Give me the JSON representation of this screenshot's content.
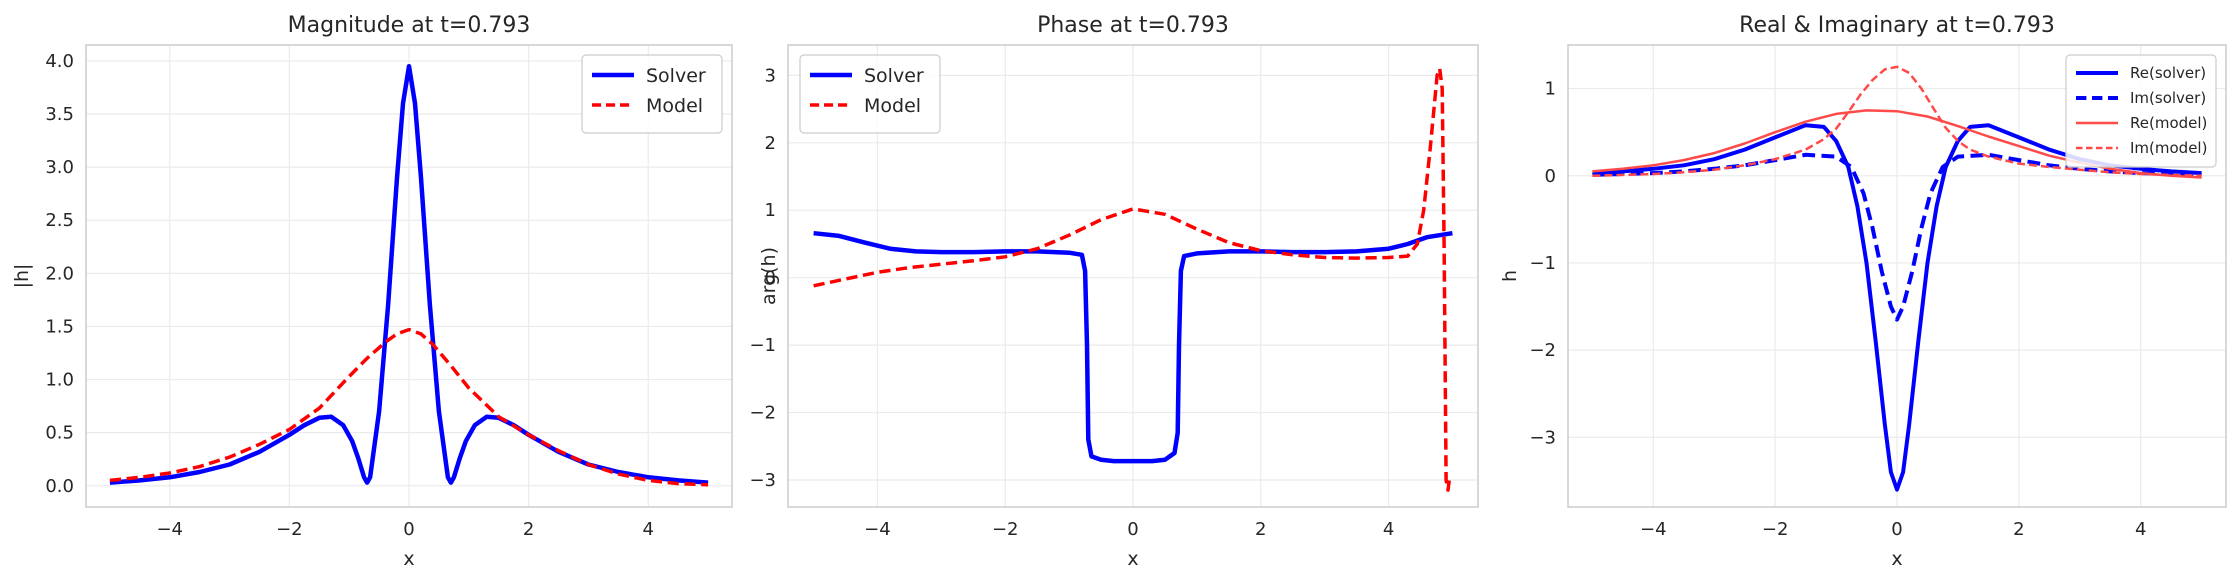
{
  "colors": {
    "solver": "#0000ff",
    "model": "#ff0000",
    "model_light": "#ff4a4a"
  },
  "chart_data": [
    {
      "type": "line",
      "title": "Magnitude at t=0.793",
      "xlabel": "x",
      "ylabel": "|h|",
      "xlim": [
        -5.4,
        5.4
      ],
      "ylim": [
        -0.2,
        4.15
      ],
      "xticks": [
        -4,
        -2,
        0,
        2,
        4
      ],
      "xtick_labels": [
        "−4",
        "−2",
        "0",
        "2",
        "4"
      ],
      "yticks": [
        0,
        0.5,
        1,
        1.5,
        2,
        2.5,
        3,
        3.5,
        4
      ],
      "ytick_labels": [
        "0.0",
        "0.5",
        "1.0",
        "1.5",
        "2.0",
        "2.5",
        "3.0",
        "3.5",
        "4.0"
      ],
      "grid": true,
      "legend_position": "top-right",
      "series": [
        {
          "name": "Solver",
          "style": "solid",
          "color": "#0000ff",
          "width": 4.5,
          "x": [
            -5,
            -4.5,
            -4,
            -3.5,
            -3,
            -2.5,
            -2,
            -1.75,
            -1.5,
            -1.3,
            -1.1,
            -0.95,
            -0.85,
            -0.75,
            -0.7,
            -0.65,
            -0.5,
            -0.35,
            -0.2,
            -0.1,
            0,
            0.1,
            0.2,
            0.35,
            0.5,
            0.65,
            0.7,
            0.75,
            0.85,
            0.95,
            1.1,
            1.3,
            1.5,
            1.75,
            2,
            2.5,
            3,
            3.5,
            4,
            4.5,
            5
          ],
          "y": [
            0.03,
            0.05,
            0.08,
            0.13,
            0.2,
            0.32,
            0.48,
            0.57,
            0.64,
            0.65,
            0.57,
            0.42,
            0.26,
            0.08,
            0.03,
            0.08,
            0.7,
            1.7,
            2.9,
            3.6,
            3.95,
            3.6,
            2.9,
            1.7,
            0.7,
            0.08,
            0.03,
            0.08,
            0.26,
            0.42,
            0.57,
            0.65,
            0.64,
            0.57,
            0.48,
            0.32,
            0.2,
            0.13,
            0.08,
            0.05,
            0.03
          ]
        },
        {
          "name": "Model",
          "style": "dashed",
          "color": "#ff0000",
          "width": 3.5,
          "x": [
            -5,
            -4.5,
            -4,
            -3.5,
            -3,
            -2.5,
            -2,
            -1.5,
            -1,
            -0.7,
            -0.4,
            -0.2,
            0,
            0.2,
            0.4,
            0.7,
            1,
            1.5,
            2,
            2.5,
            3,
            3.5,
            4,
            4.5,
            5
          ],
          "y": [
            0.05,
            0.08,
            0.12,
            0.18,
            0.27,
            0.39,
            0.53,
            0.73,
            1.03,
            1.2,
            1.35,
            1.43,
            1.47,
            1.43,
            1.33,
            1.13,
            0.92,
            0.65,
            0.48,
            0.33,
            0.2,
            0.11,
            0.05,
            0.02,
            0.01
          ]
        }
      ]
    },
    {
      "type": "line",
      "title": "Phase at t=0.793",
      "xlabel": "x",
      "ylabel": "arg(h)",
      "xlim": [
        -5.4,
        5.4
      ],
      "ylim": [
        -3.4,
        3.45
      ],
      "xticks": [
        -4,
        -2,
        0,
        2,
        4
      ],
      "xtick_labels": [
        "−4",
        "−2",
        "0",
        "2",
        "4"
      ],
      "yticks": [
        -3,
        -2,
        -1,
        0,
        1,
        2,
        3
      ],
      "ytick_labels": [
        "−3",
        "−2",
        "−1",
        "0",
        "1",
        "2",
        "3"
      ],
      "grid": true,
      "legend_position": "top-left",
      "series": [
        {
          "name": "Solver",
          "style": "solid",
          "color": "#0000ff",
          "width": 4.5,
          "x": [
            -5,
            -4.6,
            -4.2,
            -3.8,
            -3.4,
            -3,
            -2.5,
            -2,
            -1.5,
            -1,
            -0.8,
            -0.75,
            -0.72,
            -0.7,
            -0.65,
            -0.5,
            -0.3,
            0,
            0.3,
            0.5,
            0.65,
            0.7,
            0.72,
            0.75,
            0.8,
            1,
            1.5,
            2,
            2.5,
            3,
            3.5,
            4,
            4.3,
            4.6,
            5
          ],
          "y": [
            0.66,
            0.62,
            0.52,
            0.43,
            0.39,
            0.38,
            0.38,
            0.39,
            0.39,
            0.37,
            0.34,
            0.1,
            -1,
            -2.4,
            -2.65,
            -2.7,
            -2.72,
            -2.72,
            -2.72,
            -2.7,
            -2.6,
            -2.3,
            -1,
            0.1,
            0.32,
            0.36,
            0.39,
            0.39,
            0.38,
            0.38,
            0.39,
            0.43,
            0.5,
            0.6,
            0.66
          ]
        },
        {
          "name": "Model",
          "style": "dashed",
          "color": "#ff0000",
          "width": 3.5,
          "x": [
            -5,
            -4.5,
            -4,
            -3.5,
            -3,
            -2.5,
            -2,
            -1.5,
            -1,
            -0.5,
            0,
            0.5,
            1,
            1.5,
            2,
            2.5,
            3,
            3.5,
            4,
            4.3,
            4.45,
            4.55,
            4.65,
            4.72,
            4.76,
            4.8,
            4.84,
            4.87,
            4.9,
            4.93,
            4.95
          ],
          "y": [
            -0.12,
            -0.02,
            0.08,
            0.15,
            0.2,
            0.25,
            0.31,
            0.43,
            0.63,
            0.86,
            1.02,
            0.94,
            0.72,
            0.52,
            0.4,
            0.34,
            0.3,
            0.29,
            0.3,
            0.32,
            0.5,
            1.0,
            1.9,
            2.6,
            3.0,
            3.1,
            2.8,
            0.5,
            -3.0,
            -3.15,
            -3.0
          ]
        }
      ]
    },
    {
      "type": "line",
      "title": "Real & Imaginary at t=0.793",
      "xlabel": "x",
      "ylabel": "h",
      "xlim": [
        -5.4,
        5.4
      ],
      "ylim": [
        -3.8,
        1.5
      ],
      "xticks": [
        -4,
        -2,
        0,
        2,
        4
      ],
      "xtick_labels": [
        "−4",
        "−2",
        "0",
        "2",
        "4"
      ],
      "yticks": [
        -3,
        -2,
        -1,
        0,
        1
      ],
      "ytick_labels": [
        "−3",
        "−2",
        "−1",
        "0",
        "1"
      ],
      "grid": true,
      "legend_position": "top-right",
      "series": [
        {
          "name": "Re(solver)",
          "style": "solid",
          "color": "#0000ff",
          "width": 4,
          "x": [
            -5,
            -4.5,
            -4,
            -3.5,
            -3,
            -2.5,
            -2,
            -1.5,
            -1.2,
            -1,
            -0.8,
            -0.65,
            -0.5,
            -0.35,
            -0.2,
            -0.1,
            0,
            0.1,
            0.2,
            0.35,
            0.5,
            0.65,
            0.8,
            1,
            1.2,
            1.5,
            2,
            2.5,
            3,
            3.5,
            4,
            4.5,
            5
          ],
          "y": [
            0.03,
            0.05,
            0.08,
            0.12,
            0.19,
            0.3,
            0.44,
            0.58,
            0.56,
            0.4,
            0.1,
            -0.35,
            -1.0,
            -1.9,
            -2.85,
            -3.4,
            -3.6,
            -3.4,
            -2.85,
            -1.9,
            -1.0,
            -0.35,
            0.1,
            0.4,
            0.56,
            0.58,
            0.44,
            0.3,
            0.19,
            0.12,
            0.08,
            0.05,
            0.03
          ]
        },
        {
          "name": "Im(solver)",
          "style": "dashed",
          "color": "#0000ff",
          "width": 4,
          "x": [
            -5,
            -4.5,
            -4,
            -3.5,
            -3,
            -2.5,
            -2,
            -1.5,
            -1,
            -0.75,
            -0.55,
            -0.4,
            -0.25,
            -0.1,
            0,
            0.1,
            0.25,
            0.4,
            0.55,
            0.75,
            1,
            1.5,
            2,
            2.5,
            3,
            3.5,
            4,
            4.5,
            5
          ],
          "y": [
            0.01,
            0.02,
            0.03,
            0.05,
            0.08,
            0.12,
            0.18,
            0.24,
            0.22,
            0.1,
            -0.2,
            -0.6,
            -1.1,
            -1.5,
            -1.65,
            -1.5,
            -1.1,
            -0.6,
            -0.2,
            0.1,
            0.22,
            0.24,
            0.18,
            0.12,
            0.08,
            0.05,
            0.03,
            0.02,
            0.01
          ]
        },
        {
          "name": "Re(model)",
          "style": "solid",
          "color": "#ff4a4a",
          "width": 2.5,
          "x": [
            -5,
            -4.5,
            -4,
            -3.5,
            -3,
            -2.5,
            -2,
            -1.5,
            -1,
            -0.5,
            0,
            0.5,
            1,
            1.5,
            2,
            2.5,
            3,
            3.5,
            4,
            4.5,
            5
          ],
          "y": [
            0.05,
            0.08,
            0.12,
            0.18,
            0.26,
            0.37,
            0.5,
            0.62,
            0.71,
            0.75,
            0.74,
            0.68,
            0.57,
            0.45,
            0.34,
            0.23,
            0.15,
            0.08,
            0.03,
            0.0,
            -0.02
          ]
        },
        {
          "name": "Im(model)",
          "style": "dashed",
          "color": "#ff4a4a",
          "width": 2.5,
          "x": [
            -5,
            -4.5,
            -4,
            -3.5,
            -3,
            -2.5,
            -2,
            -1.5,
            -1.2,
            -1,
            -0.8,
            -0.6,
            -0.4,
            -0.2,
            0,
            0.2,
            0.4,
            0.6,
            0.8,
            1,
            1.2,
            1.5,
            2,
            2.5,
            3,
            3.5,
            4,
            4.5,
            5
          ],
          "y": [
            0.0,
            0.01,
            0.02,
            0.04,
            0.07,
            0.12,
            0.19,
            0.3,
            0.42,
            0.54,
            0.73,
            0.93,
            1.1,
            1.22,
            1.25,
            1.18,
            1.0,
            0.77,
            0.55,
            0.4,
            0.3,
            0.22,
            0.14,
            0.1,
            0.07,
            0.04,
            0.02,
            0.01,
            0.0
          ]
        }
      ]
    }
  ]
}
